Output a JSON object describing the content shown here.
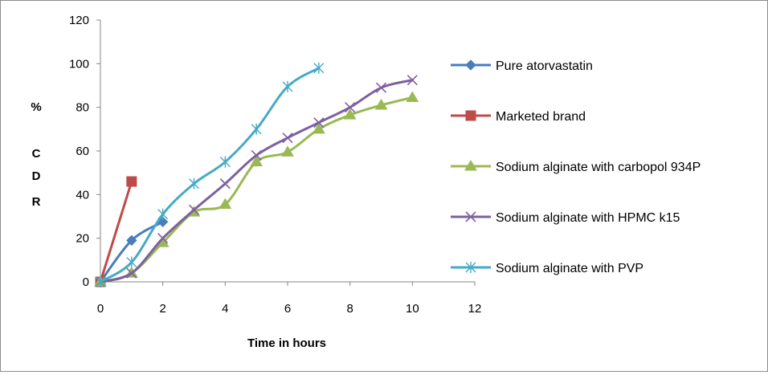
{
  "chart_data": {
    "type": "line",
    "title": "",
    "xlabel": "Time in hours",
    "ylabel_lines": [
      "%",
      "C",
      "D",
      "R"
    ],
    "xlim": [
      0,
      12
    ],
    "ylim": [
      0,
      120
    ],
    "x_ticks": [
      0,
      2,
      4,
      6,
      8,
      10,
      12
    ],
    "y_ticks": [
      0,
      20,
      40,
      60,
      80,
      100,
      120
    ],
    "grid": false,
    "legend_position": "right",
    "smooth": true,
    "series": [
      {
        "name": "Pure atorvastatin",
        "color": "#4a7ebb",
        "marker": "diamond",
        "x": [
          0,
          1,
          2
        ],
        "y": [
          0,
          19,
          27.5
        ]
      },
      {
        "name": "Marketed brand",
        "color": "#be4b48",
        "marker": "square",
        "x": [
          0,
          1
        ],
        "y": [
          0,
          46
        ]
      },
      {
        "name": "Sodium alginate with carbopol 934P",
        "color": "#98b954",
        "marker": "triangle",
        "x": [
          0,
          1,
          2,
          3,
          4,
          5,
          6,
          7,
          8,
          9,
          10
        ],
        "y": [
          0,
          4,
          18,
          32,
          35.5,
          55,
          59.5,
          70,
          76.5,
          81,
          84.5
        ]
      },
      {
        "name": "Sodium alginate with HPMC k15",
        "color": "#7d60a0",
        "marker": "x",
        "x": [
          0,
          1,
          2,
          3,
          4,
          5,
          6,
          7,
          8,
          9,
          10
        ],
        "y": [
          0,
          4,
          20,
          33,
          45,
          58,
          66,
          73,
          80,
          89,
          92.5
        ]
      },
      {
        "name": "Sodium alginate with PVP",
        "color": "#46aac5",
        "marker": "star",
        "x": [
          0,
          1,
          2,
          3,
          4,
          5,
          6,
          7
        ],
        "y": [
          0,
          9,
          31,
          45,
          55,
          70,
          89.5,
          98
        ]
      }
    ]
  }
}
